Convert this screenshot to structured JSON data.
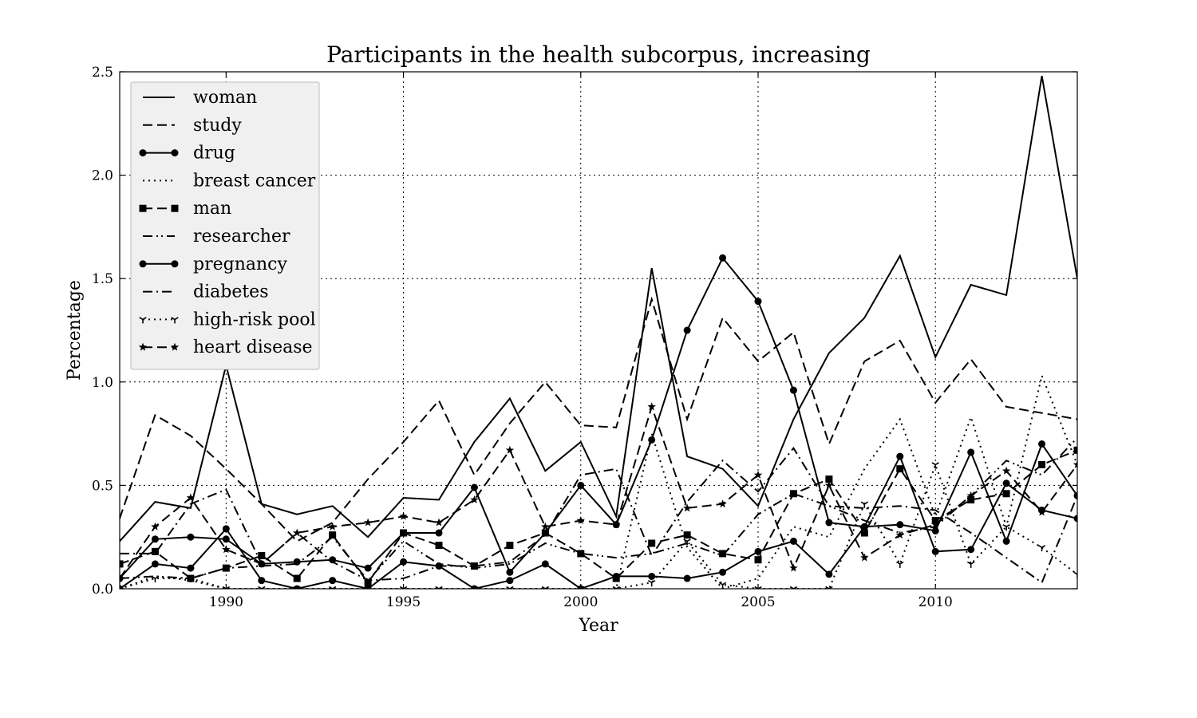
{
  "chart_data": {
    "type": "line",
    "title": "Participants in the health subcorpus, increasing",
    "xlabel": "Year",
    "ylabel": "Percentage",
    "xlim": [
      1987,
      2014
    ],
    "ylim": [
      0,
      2.5
    ],
    "xticks": [
      1990,
      1995,
      2000,
      2005,
      2010
    ],
    "yticks": [
      "0.0",
      "0.5",
      "1.0",
      "1.5",
      "2.0",
      "2.5"
    ],
    "grid": true,
    "legend_position": "top-left",
    "x": [
      1987,
      1988,
      1989,
      1990,
      1991,
      1992,
      1993,
      1994,
      1995,
      1996,
      1997,
      1998,
      1999,
      2000,
      2001,
      2002,
      2003,
      2004,
      2005,
      2006,
      2007,
      2008,
      2009,
      2010,
      2011,
      2012,
      2013,
      2014
    ],
    "series": [
      {
        "name": "woman",
        "style": "solid",
        "marker": "none",
        "values": [
          0.23,
          0.42,
          0.39,
          1.08,
          0.41,
          0.36,
          0.4,
          0.25,
          0.44,
          0.43,
          0.71,
          0.92,
          0.57,
          0.71,
          0.35,
          1.55,
          0.64,
          0.58,
          0.4,
          0.82,
          1.14,
          1.31,
          1.61,
          1.12,
          1.47,
          1.42,
          2.48,
          1.5
        ]
      },
      {
        "name": "study",
        "style": "dashed",
        "marker": "none",
        "values": [
          0.34,
          0.84,
          0.74,
          0.58,
          0.41,
          0.23,
          0.32,
          0.53,
          0.71,
          0.91,
          0.55,
          0.8,
          1.0,
          0.79,
          0.78,
          1.4,
          0.82,
          1.31,
          1.1,
          1.24,
          0.7,
          1.1,
          1.2,
          0.9,
          1.11,
          0.88,
          0.85,
          0.82
        ]
      },
      {
        "name": "drug",
        "style": "solid",
        "marker": "circle",
        "values": [
          0.05,
          0.24,
          0.25,
          0.24,
          0.12,
          0.13,
          0.14,
          0.1,
          0.27,
          0.27,
          0.49,
          0.08,
          0.27,
          0.5,
          0.31,
          0.72,
          1.25,
          1.6,
          1.39,
          0.96,
          0.32,
          0.3,
          0.31,
          0.28,
          0.66,
          0.23,
          0.7,
          0.45
        ]
      },
      {
        "name": "breast cancer",
        "style": "dotted",
        "marker": "none",
        "values": [
          0.0,
          0.06,
          0.04,
          0.0,
          0.0,
          0.0,
          0.0,
          0.0,
          0.0,
          0.0,
          0.0,
          0.0,
          0.0,
          0.0,
          0.0,
          0.75,
          0.2,
          0.0,
          0.05,
          0.3,
          0.25,
          0.58,
          0.82,
          0.35,
          0.83,
          0.3,
          1.03,
          0.6
        ]
      },
      {
        "name": "man",
        "style": "dashed",
        "marker": "square",
        "values": [
          0.12,
          0.18,
          0.05,
          0.1,
          0.16,
          0.05,
          0.26,
          0.03,
          0.27,
          0.21,
          0.11,
          0.21,
          0.27,
          0.17,
          0.05,
          0.22,
          0.26,
          0.17,
          0.14,
          0.46,
          0.53,
          0.27,
          0.58,
          0.33,
          0.43,
          0.46,
          0.6,
          0.67
        ]
      },
      {
        "name": "researcher",
        "style": "dashdotdot",
        "marker": "none",
        "values": [
          0.05,
          0.06,
          0.05,
          0.1,
          0.11,
          0.12,
          0.25,
          0.04,
          0.23,
          0.12,
          0.1,
          0.12,
          0.22,
          0.17,
          0.15,
          0.17,
          0.22,
          0.16,
          0.36,
          0.46,
          0.4,
          0.33,
          0.27,
          0.3,
          0.45,
          0.62,
          0.55,
          0.73
        ]
      },
      {
        "name": "pregnancy",
        "style": "solid",
        "marker": "circle",
        "values": [
          0.0,
          0.12,
          0.1,
          0.29,
          0.04,
          0.0,
          0.04,
          0.0,
          0.13,
          0.11,
          0.0,
          0.04,
          0.12,
          0.0,
          0.06,
          0.06,
          0.05,
          0.08,
          0.18,
          0.23,
          0.07,
          0.3,
          0.64,
          0.18,
          0.19,
          0.51,
          0.38,
          0.34
        ]
      },
      {
        "name": "diabetes",
        "style": "dashdot",
        "marker": "none",
        "values": [
          0.17,
          0.17,
          0.41,
          0.48,
          0.12,
          0.27,
          0.13,
          0.04,
          0.05,
          0.11,
          0.11,
          0.13,
          0.26,
          0.55,
          0.58,
          0.16,
          0.42,
          0.62,
          0.47,
          0.68,
          0.4,
          0.39,
          0.4,
          0.38,
          0.27,
          0.15,
          0.03,
          0.45
        ]
      },
      {
        "name": "high-risk pool",
        "style": "dotted",
        "marker": "tri",
        "values": [
          0.0,
          0.05,
          0.05,
          0.0,
          0.0,
          0.0,
          0.0,
          0.0,
          0.0,
          0.0,
          0.0,
          0.0,
          0.0,
          0.0,
          0.0,
          0.03,
          0.23,
          0.02,
          0.0,
          0.0,
          0.0,
          0.41,
          0.12,
          0.6,
          0.12,
          0.3,
          0.2,
          0.07
        ]
      },
      {
        "name": "heart disease",
        "style": "dashed",
        "marker": "star",
        "values": [
          0.05,
          0.3,
          0.44,
          0.19,
          0.12,
          0.27,
          0.3,
          0.32,
          0.35,
          0.32,
          0.43,
          0.67,
          0.3,
          0.33,
          0.31,
          0.88,
          0.39,
          0.41,
          0.55,
          0.1,
          0.5,
          0.15,
          0.26,
          0.31,
          0.45,
          0.57,
          0.37,
          0.6
        ]
      }
    ]
  }
}
